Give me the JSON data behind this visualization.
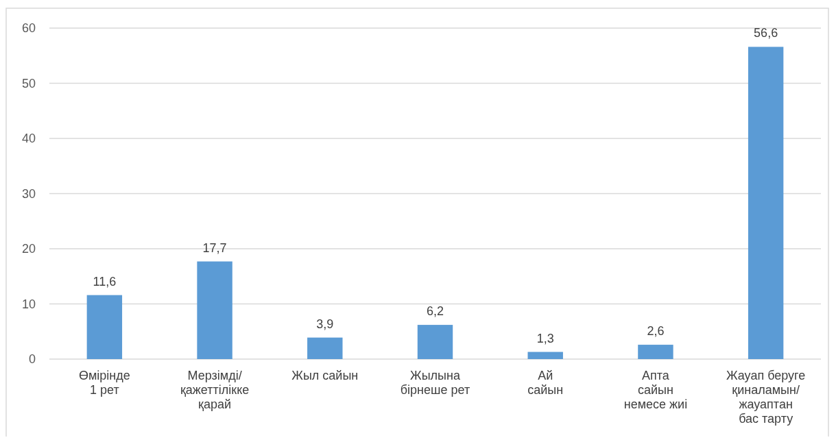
{
  "chart_data": {
    "type": "bar",
    "categories": [
      "Өмірінде\n1 рет",
      "Мерзімді/\nқажеттілікке\nқарай",
      "Жыл сайын",
      "Жылына\nбірнеше рет",
      "Ай\nсайын",
      "Апта\nсайын\nнемесе жиі",
      "Жауап беруге\nқиналамын/\nжауаптан\nбас тарту"
    ],
    "values": [
      11.6,
      17.7,
      3.9,
      6.2,
      1.3,
      2.6,
      56.6
    ],
    "value_labels": [
      "11,6",
      "17,7",
      "3,9",
      "6,2",
      "1,3",
      "2,6",
      "56,6"
    ],
    "color": "#5b9bd5",
    "ylim": [
      0,
      60
    ],
    "yticks": [
      0,
      10,
      20,
      30,
      40,
      50,
      60
    ],
    "grid": "y"
  }
}
